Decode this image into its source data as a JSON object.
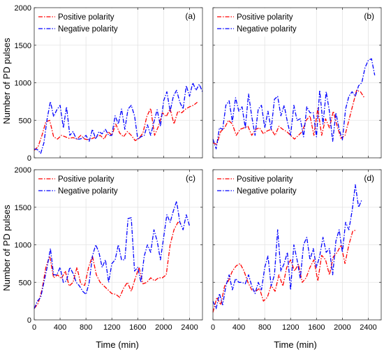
{
  "figure": {
    "ylabel": "Number of PD pulses",
    "xlabel": "Time (min)"
  },
  "chart_data": [
    {
      "type": "line",
      "panel": "(a)",
      "xlim": [
        0,
        2600
      ],
      "ylim": [
        0,
        2000
      ],
      "xticks": [
        0,
        400,
        800,
        1200,
        1600,
        2000,
        2400
      ],
      "yticks": [
        0,
        500,
        1000,
        1500,
        2000
      ],
      "grid": true,
      "legend_position": "top-left",
      "series": [
        {
          "name": "Positive polarity",
          "color": "#ff0000",
          "x": [
            0,
            60,
            120,
            180,
            240,
            300,
            360,
            420,
            480,
            540,
            600,
            660,
            720,
            780,
            840,
            900,
            960,
            1020,
            1080,
            1140,
            1200,
            1260,
            1320,
            1380,
            1440,
            1500,
            1560,
            1620,
            1680,
            1740,
            1800,
            1860,
            1920,
            1980,
            2040,
            2100,
            2160,
            2220,
            2280,
            2340,
            2400,
            2460,
            2520
          ],
          "y": [
            100,
            150,
            300,
            480,
            500,
            280,
            250,
            300,
            280,
            260,
            270,
            250,
            300,
            250,
            240,
            260,
            280,
            300,
            250,
            350,
            300,
            450,
            330,
            280,
            350,
            300,
            230,
            260,
            330,
            550,
            660,
            300,
            420,
            600,
            550,
            650,
            450,
            620,
            600,
            650,
            680,
            700,
            740
          ]
        },
        {
          "name": "Negative polarity",
          "color": "#0000ff",
          "x": [
            0,
            50,
            100,
            150,
            200,
            250,
            300,
            350,
            400,
            450,
            500,
            550,
            600,
            650,
            700,
            750,
            800,
            850,
            900,
            950,
            1000,
            1050,
            1100,
            1150,
            1200,
            1250,
            1300,
            1350,
            1400,
            1450,
            1500,
            1550,
            1600,
            1650,
            1700,
            1750,
            1800,
            1850,
            1900,
            1950,
            2000,
            2050,
            2100,
            2150,
            2200,
            2250,
            2300,
            2350,
            2400,
            2450,
            2500,
            2550,
            2600
          ],
          "y": [
            120,
            110,
            60,
            200,
            520,
            750,
            550,
            640,
            700,
            400,
            680,
            300,
            350,
            250,
            250,
            260,
            300,
            220,
            380,
            250,
            350,
            320,
            380,
            300,
            300,
            560,
            450,
            650,
            380,
            650,
            700,
            560,
            250,
            280,
            300,
            440,
            300,
            480,
            640,
            420,
            760,
            880,
            620,
            820,
            900,
            740,
            650,
            960,
            820,
            1000,
            900,
            980,
            880
          ]
        }
      ]
    },
    {
      "type": "line",
      "panel": "(b)",
      "xlim": [
        0,
        2600
      ],
      "ylim": [
        0,
        2000
      ],
      "xticks": [
        0,
        400,
        800,
        1200,
        1600,
        2000,
        2400
      ],
      "yticks": [
        0,
        500,
        1000,
        1500,
        2000
      ],
      "grid": true,
      "legend_position": "top-left",
      "series": [
        {
          "name": "Positive polarity",
          "color": "#ff0000",
          "x": [
            0,
            60,
            120,
            180,
            240,
            300,
            360,
            420,
            480,
            540,
            600,
            660,
            720,
            780,
            840,
            900,
            960,
            1020,
            1080,
            1140,
            1200,
            1260,
            1320,
            1380,
            1440,
            1500,
            1560,
            1620,
            1680,
            1740,
            1800,
            1860,
            1920,
            1980,
            2040,
            2100,
            2160,
            2220,
            2280,
            2340
          ],
          "y": [
            200,
            180,
            350,
            400,
            500,
            450,
            300,
            380,
            400,
            420,
            300,
            380,
            400,
            320,
            360,
            380,
            300,
            420,
            380,
            350,
            300,
            250,
            300,
            350,
            500,
            560,
            300,
            660,
            300,
            520,
            400,
            620,
            420,
            260,
            300,
            500,
            700,
            900,
            880,
            800
          ]
        },
        {
          "name": "Negative polarity",
          "color": "#0000ff",
          "x": [
            0,
            50,
            100,
            150,
            200,
            250,
            300,
            350,
            400,
            450,
            500,
            550,
            600,
            650,
            700,
            750,
            800,
            850,
            900,
            950,
            1000,
            1050,
            1100,
            1150,
            1200,
            1250,
            1300,
            1350,
            1400,
            1450,
            1500,
            1550,
            1600,
            1650,
            1700,
            1750,
            1800,
            1850,
            1900,
            1950,
            2000,
            2050,
            2100,
            2150,
            2200,
            2250,
            2300,
            2350,
            2400,
            2450,
            2500
          ],
          "y": [
            250,
            120,
            400,
            380,
            700,
            760,
            480,
            800,
            620,
            680,
            400,
            850,
            550,
            300,
            650,
            700,
            400,
            620,
            380,
            780,
            820,
            560,
            700,
            480,
            300,
            700,
            500,
            520,
            280,
            680,
            600,
            600,
            280,
            900,
            450,
            880,
            620,
            220,
            600,
            380,
            240,
            650,
            820,
            880,
            820,
            960,
            1000,
            1200,
            1300,
            1320,
            1100
          ]
        }
      ]
    },
    {
      "type": "line",
      "panel": "(c)",
      "xlim": [
        0,
        2600
      ],
      "ylim": [
        0,
        2000
      ],
      "xticks": [
        0,
        400,
        800,
        1200,
        1600,
        2000,
        2400
      ],
      "yticks": [
        0,
        500,
        1000,
        1500,
        2000
      ],
      "grid": true,
      "legend_position": "top-left",
      "series": [
        {
          "name": "Positive polarity",
          "color": "#ff0000",
          "x": [
            0,
            60,
            120,
            180,
            240,
            300,
            360,
            420,
            480,
            540,
            600,
            660,
            720,
            780,
            840,
            900,
            960,
            1020,
            1080,
            1140,
            1200,
            1260,
            1320,
            1380,
            1440,
            1500,
            1560,
            1620,
            1680,
            1740,
            1800,
            1860,
            1920,
            1980,
            2040,
            2100,
            2160,
            2220,
            2280
          ],
          "y": [
            150,
            220,
            400,
            700,
            850,
            560,
            600,
            550,
            650,
            450,
            500,
            700,
            480,
            460,
            700,
            850,
            600,
            500,
            450,
            400,
            350,
            340,
            300,
            420,
            500,
            380,
            550,
            700,
            480,
            500,
            560,
            520,
            560,
            560,
            600,
            1000,
            1200,
            1300,
            1280
          ]
        },
        {
          "name": "Negative polarity",
          "color": "#0000ff",
          "x": [
            0,
            50,
            100,
            150,
            200,
            250,
            300,
            350,
            400,
            450,
            500,
            550,
            600,
            650,
            700,
            750,
            800,
            850,
            900,
            950,
            1000,
            1050,
            1100,
            1150,
            1200,
            1250,
            1300,
            1350,
            1400,
            1450,
            1500,
            1550,
            1600,
            1650,
            1700,
            1750,
            1800,
            1850,
            1900,
            1950,
            2000,
            2050,
            2100,
            2150,
            2200,
            2250,
            2300,
            2350,
            2400
          ],
          "y": [
            150,
            250,
            300,
            500,
            700,
            950,
            600,
            600,
            700,
            500,
            520,
            700,
            620,
            500,
            450,
            380,
            340,
            500,
            850,
            1000,
            900,
            700,
            800,
            500,
            750,
            800,
            1000,
            800,
            800,
            1350,
            1360,
            650,
            700,
            500,
            850,
            1000,
            900,
            1200,
            1050,
            800,
            1100,
            1400,
            1300,
            1450,
            1580,
            1300,
            1200,
            1400,
            1250
          ]
        }
      ]
    },
    {
      "type": "line",
      "panel": "(d)",
      "xlim": [
        0,
        2600
      ],
      "ylim": [
        0,
        2000
      ],
      "xticks": [
        0,
        400,
        800,
        1200,
        1600,
        2000,
        2400
      ],
      "yticks": [
        0,
        500,
        1000,
        1500,
        2000
      ],
      "grid": true,
      "legend_position": "top-left",
      "series": [
        {
          "name": "Positive polarity",
          "color": "#ff0000",
          "x": [
            0,
            60,
            120,
            180,
            240,
            300,
            360,
            420,
            480,
            540,
            600,
            660,
            720,
            780,
            840,
            900,
            960,
            1020,
            1080,
            1140,
            1200,
            1260,
            1320,
            1380,
            1440,
            1500,
            1560,
            1620,
            1680,
            1740,
            1800,
            1860,
            1920,
            1980,
            2040,
            2100,
            2160,
            2220
          ],
          "y": [
            100,
            300,
            200,
            450,
            520,
            650,
            720,
            750,
            650,
            500,
            400,
            380,
            420,
            250,
            300,
            460,
            380,
            600,
            450,
            700,
            800,
            650,
            740,
            500,
            560,
            700,
            800,
            520,
            860,
            800,
            600,
            840,
            900,
            1000,
            750,
            1000,
            1180,
            1200
          ]
        },
        {
          "name": "Negative polarity",
          "color": "#0000ff",
          "x": [
            0,
            50,
            100,
            150,
            200,
            250,
            300,
            350,
            400,
            450,
            500,
            550,
            600,
            650,
            700,
            750,
            800,
            850,
            900,
            950,
            1000,
            1050,
            1100,
            1150,
            1200,
            1250,
            1300,
            1350,
            1400,
            1450,
            1500,
            1550,
            1600,
            1650,
            1700,
            1750,
            1800,
            1850,
            1900,
            1950,
            2000,
            2050,
            2100,
            2150,
            2200,
            2250,
            2300
          ],
          "y": [
            250,
            150,
            350,
            200,
            450,
            600,
            400,
            550,
            500,
            500,
            480,
            600,
            450,
            350,
            500,
            400,
            700,
            850,
            450,
            600,
            1200,
            650,
            750,
            900,
            400,
            1000,
            800,
            550,
            1000,
            1100,
            800,
            950,
            700,
            850,
            1100,
            900,
            950,
            600,
            1050,
            1200,
            900,
            1300,
            1200,
            1450,
            1800,
            1500,
            1600
          ]
        }
      ]
    }
  ]
}
